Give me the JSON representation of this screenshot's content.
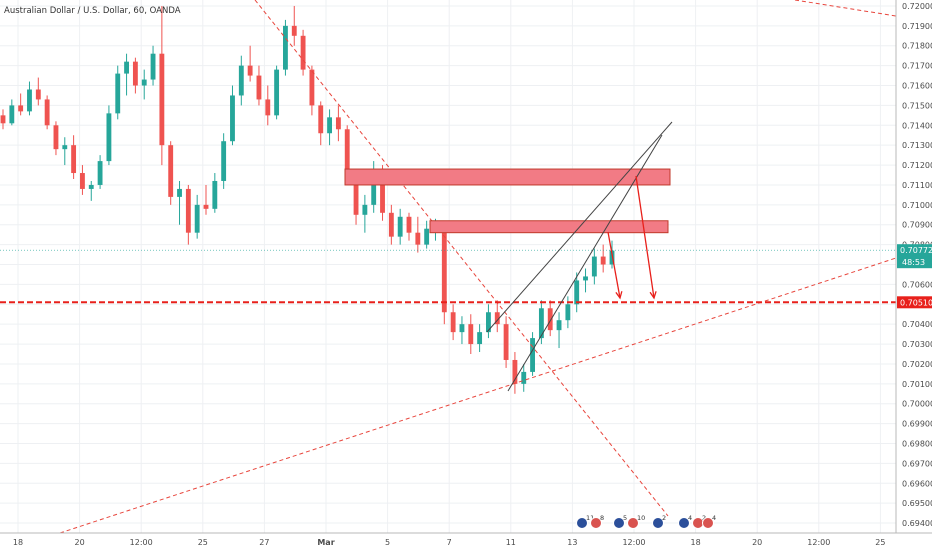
{
  "chart_data": {
    "type": "candlestick",
    "title": "Australian Dollar / U.S. Dollar, 60, OANDA",
    "ylim": [
      0.6935,
      0.7203
    ],
    "y_ticks": [
      "0.72000",
      "0.71900",
      "0.71800",
      "0.71700",
      "0.71600",
      "0.71500",
      "0.71400",
      "0.71300",
      "0.71200",
      "0.71100",
      "0.71000",
      "0.70900",
      "0.70800",
      "0.70700",
      "0.70600",
      "0.70500",
      "0.70400",
      "0.70300",
      "0.70200",
      "0.70100",
      "0.70000",
      "0.69900",
      "0.69800",
      "0.69700",
      "0.69600",
      "0.69500",
      "0.69400"
    ],
    "x_ticks": [
      "18",
      "20",
      "12:00",
      "25",
      "27",
      "Mar",
      "5",
      "7",
      "11",
      "13",
      "12:00",
      "18",
      "20",
      "12:00",
      "25"
    ],
    "last_price": {
      "label": "0.70772",
      "countdown": "48:53",
      "value": 0.70772
    },
    "support_level": {
      "label": "0.70510",
      "value": 0.7051
    },
    "resistance_zones": [
      {
        "low": 0.711,
        "high": 0.7118
      },
      {
        "low": 0.7086,
        "high": 0.7092
      }
    ],
    "events": [
      {
        "flag": "AU",
        "text": "11"
      },
      {
        "flag": "US",
        "text": "8"
      },
      {
        "flag": "AU",
        "text": "5"
      },
      {
        "flag": "US",
        "text": "10"
      },
      {
        "flag": "AU",
        "text": "2"
      },
      {
        "flag": "AU",
        "text": "4"
      },
      {
        "flag": "US",
        "text": "2"
      },
      {
        "flag": "US",
        "text": "4"
      }
    ],
    "colors": {
      "up": "#26a69a",
      "down": "#ef5350",
      "support": "#e8201b",
      "zone_fill": "#f27b85",
      "trend": "#e8453c",
      "wedge": "#444444",
      "last_price_badge": "#26a69a"
    },
    "series_ohlc": [
      [
        0.7145,
        0.7148,
        0.7138,
        0.7141
      ],
      [
        0.7141,
        0.7153,
        0.714,
        0.715
      ],
      [
        0.715,
        0.7156,
        0.7145,
        0.7147
      ],
      [
        0.7147,
        0.7162,
        0.7145,
        0.7158
      ],
      [
        0.7158,
        0.7164,
        0.715,
        0.7153
      ],
      [
        0.7153,
        0.7155,
        0.7138,
        0.714
      ],
      [
        0.714,
        0.7142,
        0.7125,
        0.7128
      ],
      [
        0.7128,
        0.7134,
        0.712,
        0.713
      ],
      [
        0.713,
        0.7135,
        0.7113,
        0.7116
      ],
      [
        0.7116,
        0.712,
        0.7105,
        0.7108
      ],
      [
        0.7108,
        0.7112,
        0.7102,
        0.711
      ],
      [
        0.711,
        0.7125,
        0.7108,
        0.7122
      ],
      [
        0.7122,
        0.715,
        0.712,
        0.7146
      ],
      [
        0.7146,
        0.717,
        0.7143,
        0.7166
      ],
      [
        0.7166,
        0.7176,
        0.7155,
        0.7172
      ],
      [
        0.7172,
        0.7174,
        0.7156,
        0.716
      ],
      [
        0.716,
        0.7168,
        0.7153,
        0.7163
      ],
      [
        0.7163,
        0.718,
        0.716,
        0.7176
      ],
      [
        0.7176,
        0.72,
        0.712,
        0.713
      ],
      [
        0.713,
        0.7132,
        0.71,
        0.7104
      ],
      [
        0.7104,
        0.7112,
        0.709,
        0.7108
      ],
      [
        0.7108,
        0.711,
        0.708,
        0.7086
      ],
      [
        0.7086,
        0.7105,
        0.7083,
        0.71
      ],
      [
        0.71,
        0.711,
        0.7095,
        0.7098
      ],
      [
        0.7098,
        0.7116,
        0.7096,
        0.7112
      ],
      [
        0.7112,
        0.7136,
        0.7108,
        0.7132
      ],
      [
        0.7132,
        0.716,
        0.713,
        0.7155
      ],
      [
        0.7155,
        0.7175,
        0.715,
        0.717
      ],
      [
        0.717,
        0.718,
        0.7162,
        0.7165
      ],
      [
        0.7165,
        0.717,
        0.715,
        0.7153
      ],
      [
        0.7153,
        0.716,
        0.714,
        0.7145
      ],
      [
        0.7145,
        0.717,
        0.7143,
        0.7168
      ],
      [
        0.7168,
        0.7193,
        0.7165,
        0.719
      ],
      [
        0.719,
        0.72,
        0.718,
        0.7185
      ],
      [
        0.7185,
        0.7188,
        0.7165,
        0.7168
      ],
      [
        0.7168,
        0.717,
        0.7145,
        0.715
      ],
      [
        0.715,
        0.7152,
        0.713,
        0.7136
      ],
      [
        0.7136,
        0.7148,
        0.713,
        0.7144
      ],
      [
        0.7144,
        0.715,
        0.7132,
        0.7138
      ],
      [
        0.7138,
        0.714,
        0.711,
        0.7115
      ],
      [
        0.7115,
        0.7118,
        0.709,
        0.7095
      ],
      [
        0.7095,
        0.7105,
        0.7086,
        0.71
      ],
      [
        0.71,
        0.7122,
        0.7096,
        0.7118
      ],
      [
        0.7118,
        0.712,
        0.7092,
        0.7096
      ],
      [
        0.7096,
        0.71,
        0.708,
        0.7084
      ],
      [
        0.7084,
        0.7098,
        0.708,
        0.7094
      ],
      [
        0.7094,
        0.7096,
        0.7082,
        0.7086
      ],
      [
        0.7086,
        0.7094,
        0.7076,
        0.708
      ],
      [
        0.708,
        0.7092,
        0.7078,
        0.7088
      ],
      [
        0.7088,
        0.7093,
        0.7082,
        0.709
      ],
      [
        0.709,
        0.7092,
        0.704,
        0.7046
      ],
      [
        0.7046,
        0.705,
        0.7032,
        0.7036
      ],
      [
        0.7036,
        0.7044,
        0.703,
        0.704
      ],
      [
        0.704,
        0.7045,
        0.7025,
        0.703
      ],
      [
        0.703,
        0.704,
        0.7026,
        0.7036
      ],
      [
        0.7036,
        0.705,
        0.7033,
        0.7046
      ],
      [
        0.7046,
        0.7052,
        0.7036,
        0.704
      ],
      [
        0.704,
        0.7044,
        0.7018,
        0.7022
      ],
      [
        0.7022,
        0.7026,
        0.7005,
        0.701
      ],
      [
        0.701,
        0.702,
        0.7006,
        0.7016
      ],
      [
        0.7016,
        0.7036,
        0.7014,
        0.7033
      ],
      [
        0.7033,
        0.7052,
        0.703,
        0.7048
      ],
      [
        0.7048,
        0.7052,
        0.7034,
        0.7037
      ],
      [
        0.7037,
        0.7046,
        0.7028,
        0.7042
      ],
      [
        0.7042,
        0.7054,
        0.7038,
        0.705
      ],
      [
        0.705,
        0.7066,
        0.7046,
        0.7062
      ],
      [
        0.7062,
        0.7068,
        0.7056,
        0.7064
      ],
      [
        0.7064,
        0.7078,
        0.706,
        0.7074
      ],
      [
        0.7074,
        0.708,
        0.7066,
        0.707
      ],
      [
        0.707,
        0.7082,
        0.7068,
        0.7077
      ]
    ]
  }
}
